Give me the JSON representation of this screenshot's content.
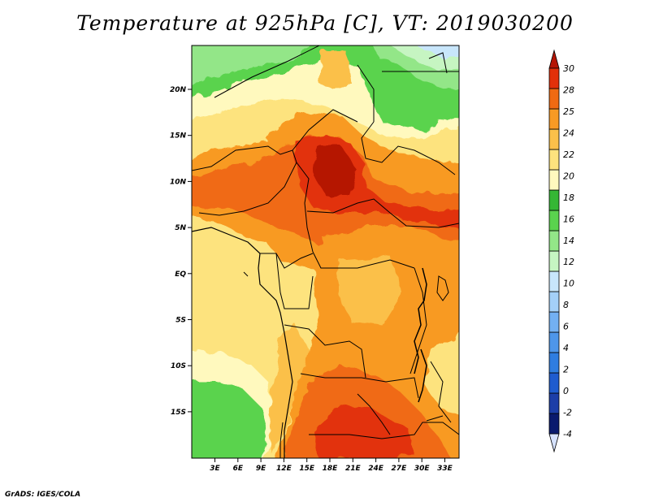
{
  "title": "Temperature at 925hPa [C], VT: 2019030200",
  "credit": "GrADS: IGES/COLA",
  "map": {
    "lat_labels": [
      "20N",
      "15N",
      "10N",
      "5N",
      "EQ",
      "5S",
      "10S",
      "15S"
    ],
    "lon_labels": [
      "3E",
      "6E",
      "9E",
      "12E",
      "15E",
      "18E",
      "21E",
      "24E",
      "27E",
      "30E",
      "33E"
    ]
  },
  "colorbar": {
    "labels": [
      "30",
      "28",
      "25",
      "24",
      "22",
      "20",
      "18",
      "16",
      "14",
      "12",
      "10",
      "8",
      "6",
      "4",
      "2",
      "0",
      "-2",
      "-4"
    ],
    "colors": [
      "#d6e2ff",
      "#0a1a6e",
      "#1c3ea8",
      "#1f5ccf",
      "#2f7de0",
      "#4e96ea",
      "#73b0f2",
      "#a4d0f8",
      "#c8e6fb",
      "#c6f5c2",
      "#93e688",
      "#5ad34e",
      "#35b735",
      "#fff9be",
      "#fde37e",
      "#fbc04a",
      "#f89a24",
      "#f06a12",
      "#e2300a",
      "#b51505"
    ]
  }
}
